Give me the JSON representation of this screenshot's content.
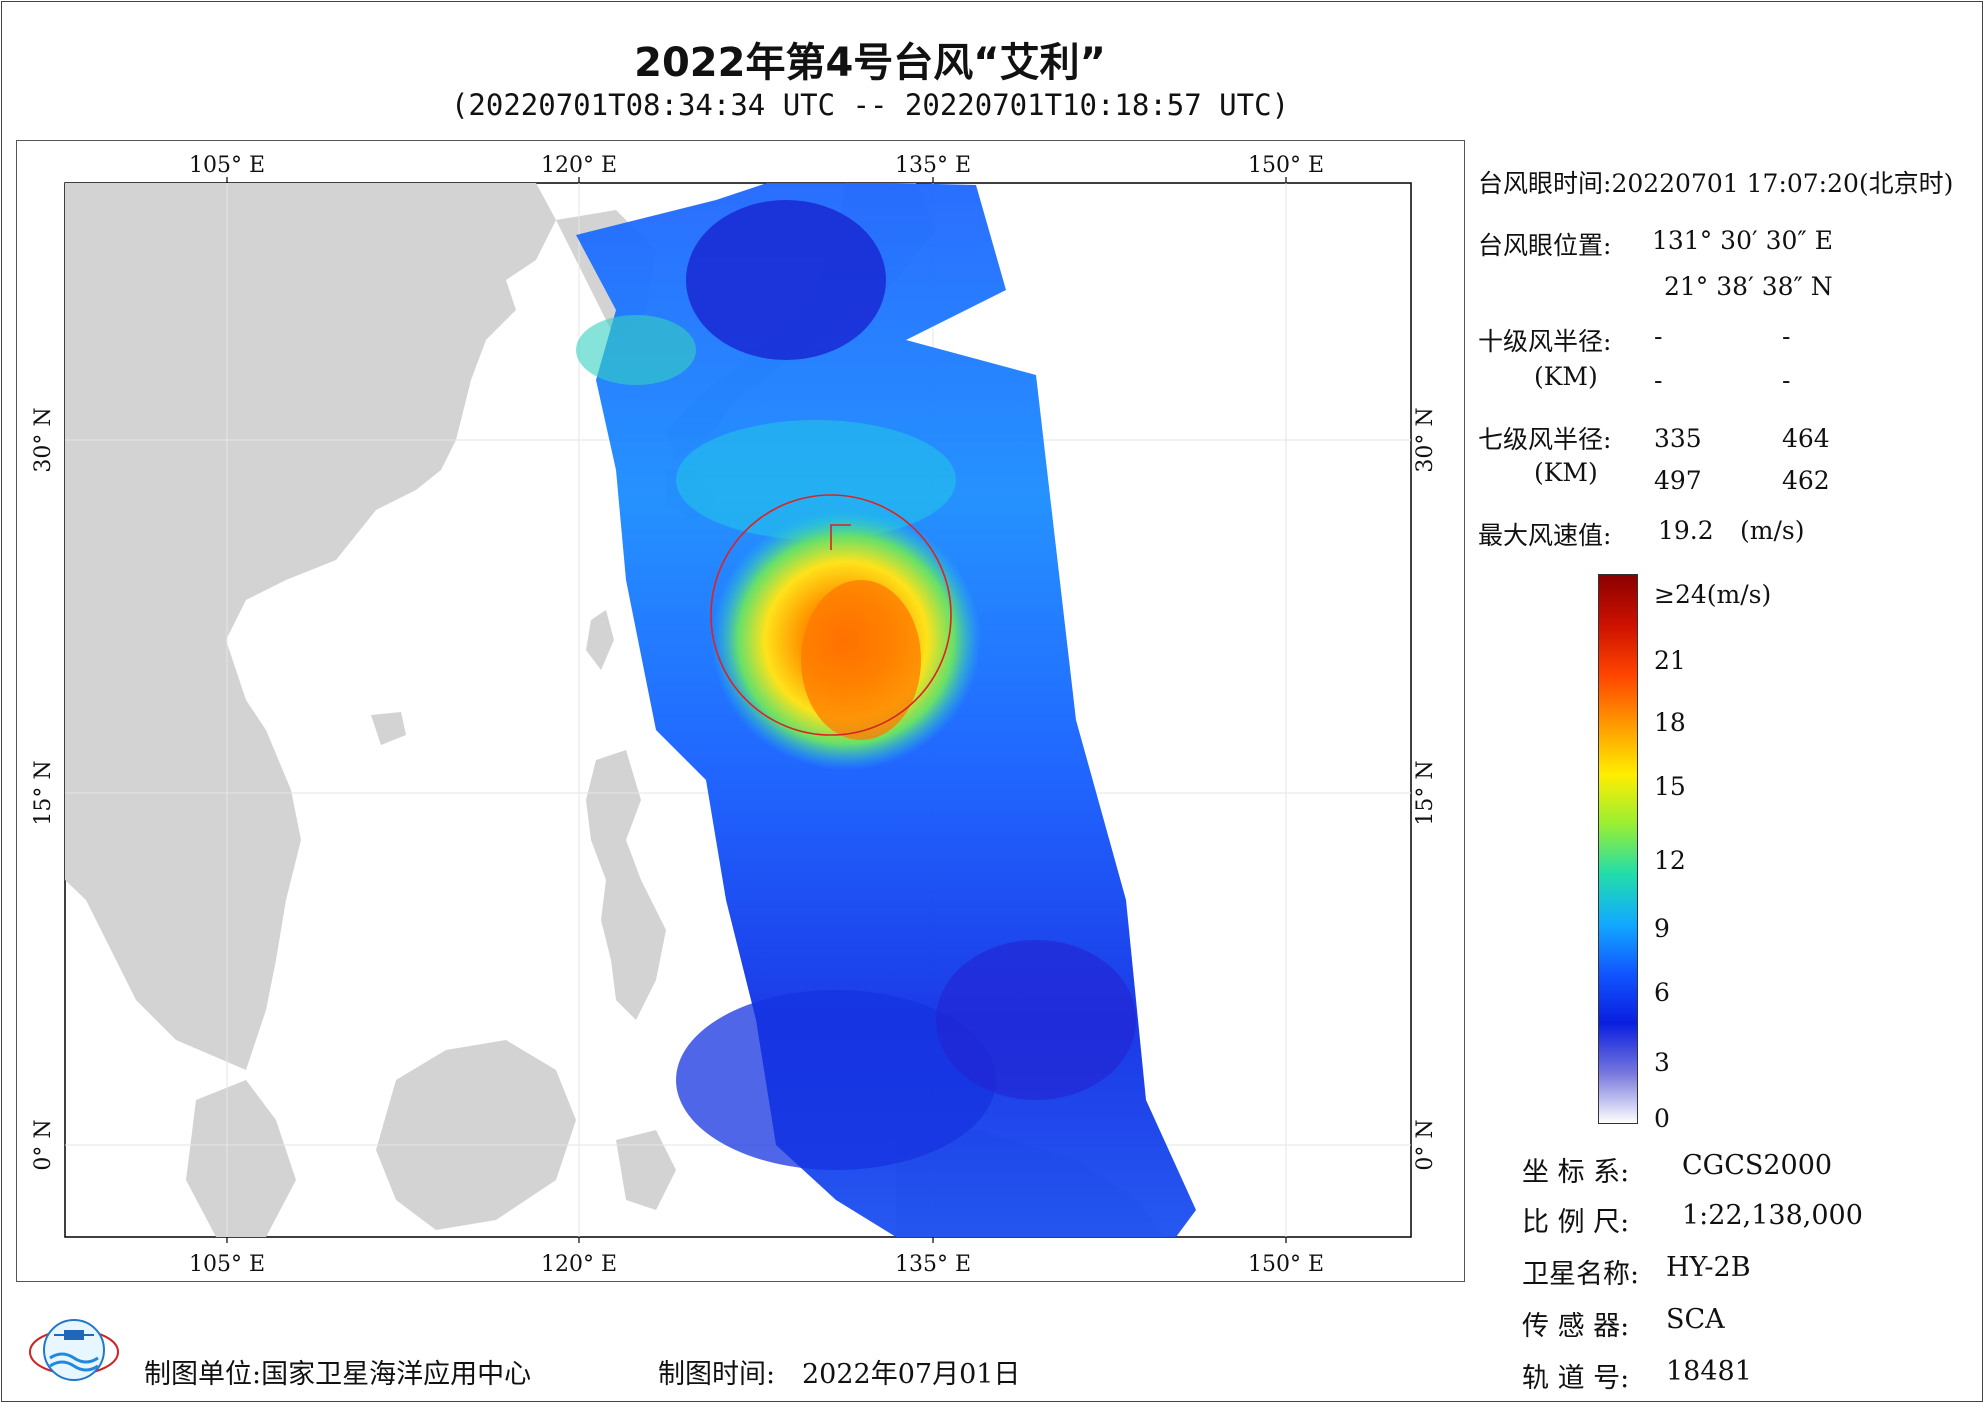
{
  "title": "2022年第4号台风“艾利”",
  "subtitle": "(20220701T08:34:34 UTC -- 20220701T10:18:57 UTC)",
  "map": {
    "lon_ticks": [
      "105° E",
      "120° E",
      "135° E",
      "150° E"
    ],
    "lat_ticks": [
      "30° N",
      "15° N",
      "0° N"
    ],
    "land_color": "#d3d3d3",
    "ocean_color": "#ffffff"
  },
  "info": {
    "eye_time_label": "台风眼时间:",
    "eye_time_value": "20220701 17:07:20(北京时)",
    "eye_pos_label": "台风眼位置:",
    "eye_lon": "131° 30′ 30″ E",
    "eye_lat": "21° 38′ 38″ N",
    "r10_label": "十级风半径:",
    "r10_unit": "(KM)",
    "r10_values": [
      "-",
      "-",
      "-",
      "-"
    ],
    "r7_label": "七级风半径:",
    "r7_unit": "(KM)",
    "r7_values": [
      "335",
      "464",
      "497",
      "462"
    ],
    "max_wind_label": "最大风速值:",
    "max_wind_value": "19.2",
    "max_wind_unit": "(m/s)"
  },
  "legend": {
    "labels": [
      "≥24(m/s)",
      "21",
      "18",
      "15",
      "12",
      "9",
      "6",
      "3",
      "0"
    ],
    "colors": [
      "#8b0000",
      "#cc1100",
      "#ff4400",
      "#ff9900",
      "#ffee00",
      "#99ee33",
      "#22ddaa",
      "#11aaff",
      "#1155ff",
      "#0a1ee0",
      "#7777dd",
      "#ffffff"
    ]
  },
  "meta": {
    "crs_label": "坐 标 系:",
    "crs_value": "CGCS2000",
    "scale_label": "比 例 尺:",
    "scale_value": "1:22,138,000",
    "satellite_label": "卫星名称:",
    "satellite_value": "HY-2B",
    "sensor_label": "传 感 器:",
    "sensor_value": "SCA",
    "orbit_label": "轨 道 号:",
    "orbit_value": "18481"
  },
  "footer": {
    "maker_label": "制图单位:",
    "maker_value": "国家卫星海洋应用中心",
    "date_label": "制图时间:",
    "date_value": "2022年07月01日"
  }
}
